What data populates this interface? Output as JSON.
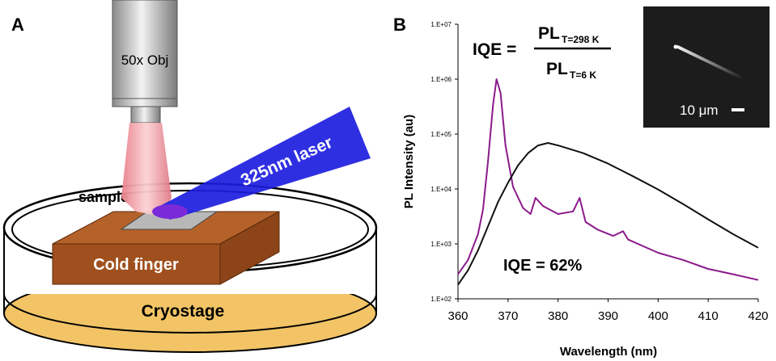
{
  "panel_a": {
    "label": "A",
    "objective": "50x Obj",
    "laser": "325nm  laser",
    "sample": "sample",
    "cold_finger": "Cold finger",
    "cryostage": "Cryostage"
  },
  "chart_data": {
    "type": "line",
    "panel_label": "B",
    "x_label": "Wavelength (nm)",
    "y_label": "PL Intensity (au)",
    "log_y": true,
    "xlim": [
      360,
      420
    ],
    "xticks": [
      360,
      370,
      380,
      390,
      400,
      410,
      420
    ],
    "ylim": [
      100,
      10000000
    ],
    "yticks": [
      {
        "value": 100,
        "label": "1.E+02"
      },
      {
        "value": 1000,
        "label": "1.E+03"
      },
      {
        "value": 10000,
        "label": "1.E+04"
      },
      {
        "value": 100000,
        "label": "1.E+05"
      },
      {
        "value": 1000000,
        "label": "1.E+06"
      },
      {
        "value": 10000000,
        "label": "1.E+07"
      }
    ],
    "series": [
      {
        "color": "#8b1a8b",
        "x": [
          360,
          362,
          364,
          365,
          366,
          367,
          367.7,
          368.5,
          369.5,
          371,
          373,
          374.5,
          375.5,
          377,
          380,
          383,
          384.3,
          385.5,
          388,
          391,
          393,
          394,
          400,
          405,
          410,
          415,
          420
        ],
        "values": [
          280,
          510,
          1500,
          4200,
          32000,
          340000,
          1000000,
          560000,
          62000,
          11000,
          4500,
          3500,
          6900,
          4900,
          3500,
          3900,
          6900,
          2500,
          1800,
          1400,
          1700,
          1200,
          690,
          510,
          350,
          280,
          220
        ]
      },
      {
        "color": "#111111",
        "x": [
          360,
          362,
          364,
          366,
          368,
          370,
          372,
          374,
          376,
          378,
          380,
          385,
          390,
          395,
          400,
          405,
          410,
          415,
          420
        ],
        "values": [
          180,
          330,
          760,
          2100,
          5800,
          13000,
          27000,
          45000,
          62000,
          69000,
          62000,
          45000,
          29000,
          17000,
          9800,
          5300,
          2800,
          1500,
          850
        ]
      }
    ],
    "formula": {
      "lhs": "IQE =",
      "pl_top": "PL",
      "sub_top": "T=298 K",
      "pl_bottom": "PL",
      "sub_bottom": "T=6 K"
    },
    "annotation": "IQE = 62%",
    "scale_bar": "10 μm"
  }
}
